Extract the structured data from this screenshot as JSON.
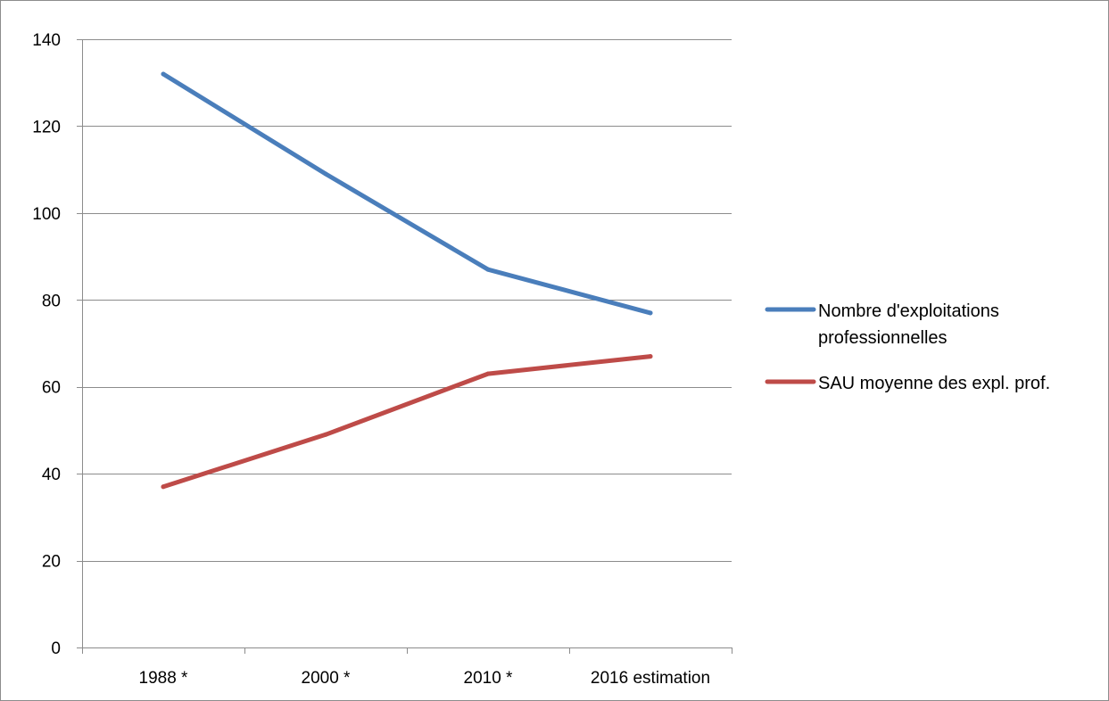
{
  "chart_data": {
    "type": "line",
    "title": "",
    "xlabel": "",
    "ylabel": "",
    "categories": [
      "1988 *",
      "2000 *",
      "2010 *",
      "2016 estimation"
    ],
    "ylim": [
      0,
      140
    ],
    "yticks": [
      0,
      20,
      40,
      60,
      80,
      100,
      120,
      140
    ],
    "grid": true,
    "legend_position": "right",
    "series": [
      {
        "name": "Nombre d'exploitations professionnelles",
        "legend_lines": [
          "Nombre d'exploitations",
          "professionnelles"
        ],
        "values": [
          132,
          109,
          87,
          77
        ],
        "color": "#4a7ebb"
      },
      {
        "name": "SAU moyenne des expl. prof.",
        "legend_lines": [
          "SAU moyenne des expl. prof."
        ],
        "values": [
          37,
          49,
          63,
          67
        ],
        "color": "#be4b48"
      }
    ]
  }
}
